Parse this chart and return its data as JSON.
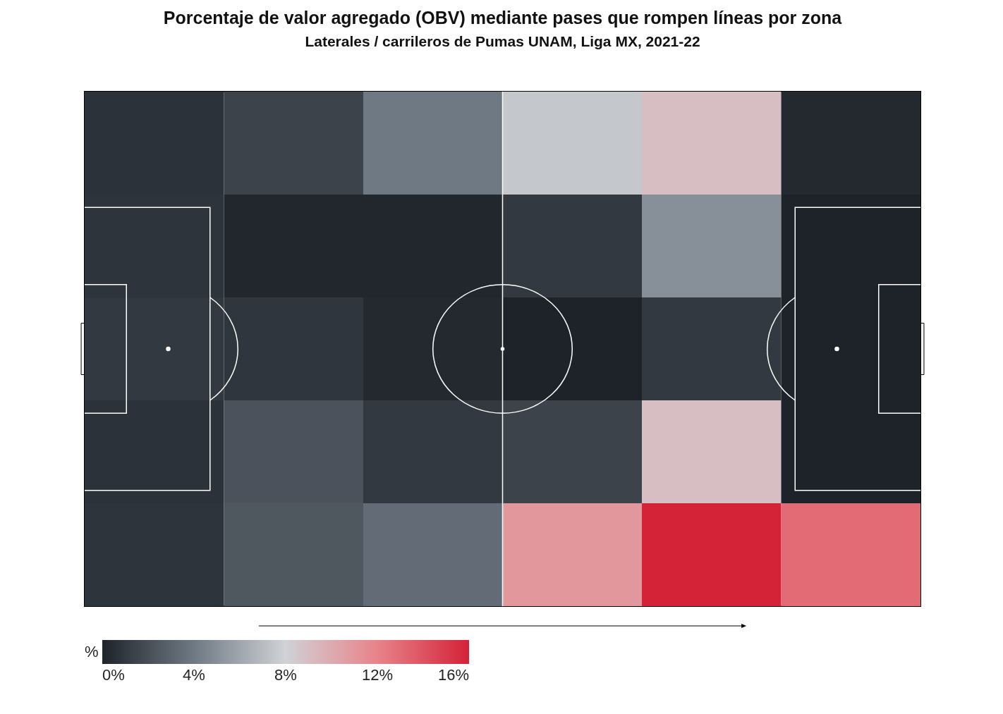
{
  "chart_data": {
    "type": "heatmap",
    "title": "Porcentaje de valor agregado (OBV) mediante pases que rompen líneas por zona",
    "subtitle": "Laterales / carrileros de Pumas UNAM, Liga MX, 2021-22",
    "categories": [
      null,
      null,
      null,
      null,
      null,
      null
    ],
    "y_categories": [
      null,
      null,
      null,
      null,
      null
    ],
    "cells": [
      [
        0.7,
        1.5,
        4,
        7.5,
        9,
        0.3
      ],
      [
        0.8,
        0.2,
        0.2,
        1,
        5,
        0
      ],
      [
        1,
        0.9,
        0.3,
        0,
        1,
        0
      ],
      [
        0.7,
        2.2,
        1,
        1.5,
        9,
        0
      ],
      [
        0.8,
        2.4,
        3.4,
        11,
        16,
        13
      ]
    ],
    "clabel": "%",
    "clim": [
      0,
      16
    ],
    "cticks": [
      {
        "value": 0,
        "label": "0%"
      },
      {
        "value": 4,
        "label": "4%"
      },
      {
        "value": 8,
        "label": "8%"
      },
      {
        "value": 12,
        "label": "12%"
      },
      {
        "value": 16,
        "label": "16%"
      }
    ],
    "colors": [
      "#1e2329",
      "#6f7983",
      "#d0d2d6",
      "#e8838a",
      "#d42237"
    ],
    "tick_labels": false
  }
}
